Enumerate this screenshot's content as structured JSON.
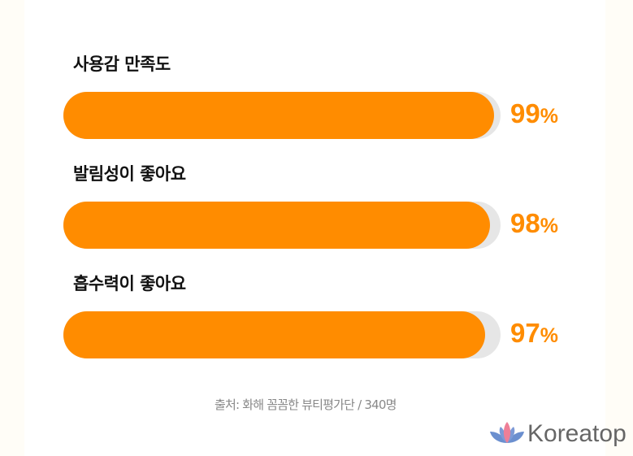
{
  "chart_data": {
    "type": "bar",
    "orientation": "horizontal",
    "categories": [
      "사용감 만족도",
      "발림성이 좋아요",
      "흡수력이 좋아요"
    ],
    "values": [
      99,
      98,
      97
    ],
    "unit": "%",
    "bar_color": "#ff8c00",
    "track_color": "#e6e6e6"
  },
  "source": "출처: 화해 꼼꼼한 뷰티평가단 / 340명",
  "logo": {
    "text": "Koreatop",
    "icon": "lotus-icon"
  }
}
